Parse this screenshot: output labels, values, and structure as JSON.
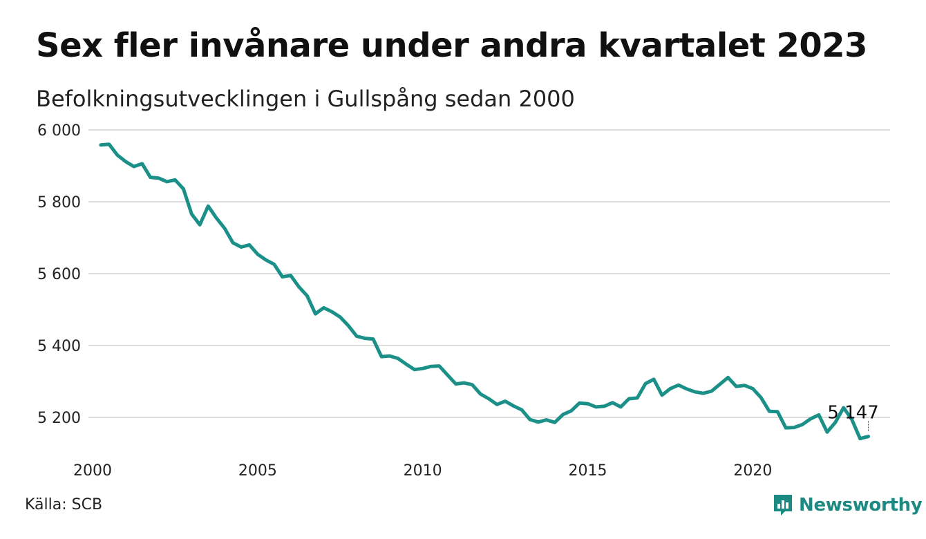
{
  "header": {
    "title": "Sex fler invånare under andra kvartalet 2023",
    "subtitle": "Befolkningsutvecklingen i Gullspång sedan 2000"
  },
  "footer": {
    "source": "Källa: SCB",
    "brand": "Newsworthy"
  },
  "colors": {
    "line": "#1b9088",
    "grid": "#dddddd",
    "brand": "#1b8a83"
  },
  "chart_data": {
    "type": "line",
    "ylim": [
      5100,
      6000
    ],
    "xlim": [
      2000,
      2024.2
    ],
    "y_ticks": [
      6000,
      5800,
      5600,
      5400,
      5200
    ],
    "y_tick_labels": [
      "6 000",
      "5 800",
      "5 600",
      "5 400",
      "5 200"
    ],
    "x_ticks": [
      2000,
      2005,
      2010,
      2015,
      2020
    ],
    "x_tick_labels": [
      "2000",
      "2005",
      "2010",
      "2015",
      "2020"
    ],
    "grid": "horizontal",
    "end_label": "5 147",
    "x": [
      2000.25,
      2000.5,
      2000.75,
      2001.0,
      2001.25,
      2001.5,
      2001.75,
      2002.0,
      2002.25,
      2002.5,
      2002.75,
      2003.0,
      2003.25,
      2003.5,
      2003.75,
      2004.0,
      2004.25,
      2004.5,
      2004.75,
      2005.0,
      2005.25,
      2005.5,
      2005.75,
      2006.0,
      2006.25,
      2006.5,
      2006.75,
      2007.0,
      2007.25,
      2007.5,
      2007.75,
      2008.0,
      2008.25,
      2008.5,
      2008.75,
      2009.0,
      2009.25,
      2009.5,
      2009.75,
      2010.0,
      2010.25,
      2010.5,
      2010.75,
      2011.0,
      2011.25,
      2011.5,
      2011.75,
      2012.0,
      2012.25,
      2012.5,
      2012.75,
      2013.0,
      2013.25,
      2013.5,
      2013.75,
      2014.0,
      2014.25,
      2014.5,
      2014.75,
      2015.0,
      2015.25,
      2015.5,
      2015.75,
      2016.0,
      2016.25,
      2016.5,
      2016.75,
      2017.0,
      2017.25,
      2017.5,
      2017.75,
      2018.0,
      2018.25,
      2018.5,
      2018.75,
      2019.0,
      2019.25,
      2019.5,
      2019.75,
      2020.0,
      2020.25,
      2020.5,
      2020.75,
      2021.0,
      2021.25,
      2021.5,
      2021.75,
      2022.0,
      2022.25,
      2022.5,
      2022.75,
      2023.0,
      2023.25,
      2023.5
    ],
    "values": [
      5958,
      5960,
      5930,
      5912,
      5898,
      5906,
      5868,
      5866,
      5856,
      5861,
      5836,
      5766,
      5736,
      5788,
      5755,
      5726,
      5686,
      5674,
      5680,
      5654,
      5638,
      5626,
      5591,
      5595,
      5563,
      5538,
      5488,
      5505,
      5494,
      5479,
      5455,
      5426,
      5420,
      5418,
      5369,
      5371,
      5364,
      5348,
      5333,
      5336,
      5342,
      5343,
      5318,
      5293,
      5296,
      5291,
      5265,
      5252,
      5236,
      5245,
      5232,
      5221,
      5194,
      5187,
      5193,
      5186,
      5208,
      5218,
      5240,
      5238,
      5229,
      5231,
      5241,
      5229,
      5252,
      5254,
      5294,
      5306,
      5262,
      5280,
      5290,
      5279,
      5271,
      5267,
      5273,
      5292,
      5311,
      5286,
      5289,
      5280,
      5255,
      5217,
      5216,
      5171,
      5172,
      5180,
      5196,
      5207,
      5159,
      5186,
      5227,
      5194,
      5141,
      5147
    ]
  }
}
